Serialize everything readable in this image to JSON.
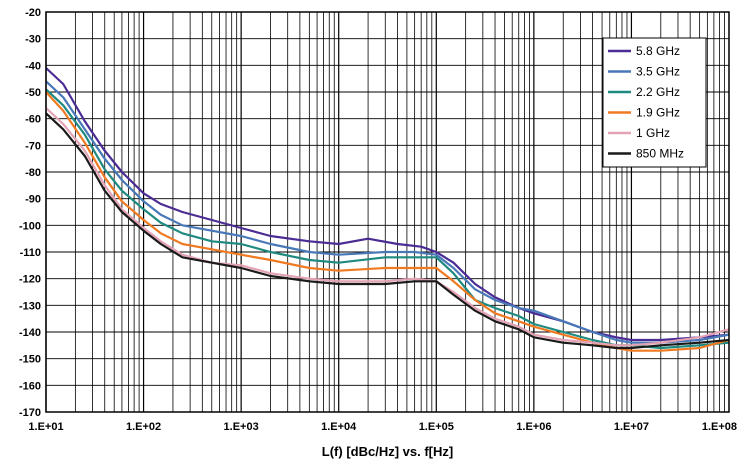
{
  "chart_data": {
    "type": "line",
    "title": "",
    "xlabel": "L(f)  [dBc/Hz] vs. f[Hz]",
    "ylabel": "",
    "x_scale": "log",
    "xlim": [
      10,
      100000000
    ],
    "ylim": [
      -170,
      -20
    ],
    "grid": true,
    "legend_position": "top-right",
    "x_tick_labels": [
      "1.E+01",
      "1.E+02",
      "1.E+03",
      "1.E+04",
      "1.E+05",
      "1.E+06",
      "1.E+07",
      "1.E+08"
    ],
    "y_tick_labels": [
      "-20",
      "-30",
      "-40",
      "-50",
      "-60",
      "-70",
      "-80",
      "-90",
      "-100",
      "-110",
      "-120",
      "-130",
      "-140",
      "-150",
      "-160",
      "-170"
    ],
    "series": [
      {
        "name": "5.8 GHz",
        "color": "#4b2c95",
        "points": [
          [
            10,
            -41
          ],
          [
            15,
            -47
          ],
          [
            25,
            -61
          ],
          [
            40,
            -72
          ],
          [
            60,
            -80
          ],
          [
            100,
            -88
          ],
          [
            150,
            -92
          ],
          [
            250,
            -95
          ],
          [
            500,
            -98
          ],
          [
            1000,
            -101
          ],
          [
            2000,
            -104
          ],
          [
            5000,
            -106
          ],
          [
            10000,
            -107
          ],
          [
            20000,
            -105
          ],
          [
            40000,
            -107
          ],
          [
            70000,
            -108
          ],
          [
            100000,
            -110
          ],
          [
            150000,
            -114
          ],
          [
            250000,
            -122
          ],
          [
            400000,
            -127
          ],
          [
            700000,
            -131
          ],
          [
            1000000,
            -133
          ],
          [
            2000000,
            -136
          ],
          [
            4000000,
            -140
          ],
          [
            7000000,
            -142
          ],
          [
            10000000,
            -143
          ],
          [
            20000000,
            -143
          ],
          [
            50000000,
            -142
          ],
          [
            100000000,
            -141
          ]
        ]
      },
      {
        "name": "3.5 GHz",
        "color": "#4878b8",
        "points": [
          [
            10,
            -46
          ],
          [
            15,
            -52
          ],
          [
            25,
            -64
          ],
          [
            40,
            -75
          ],
          [
            60,
            -83
          ],
          [
            100,
            -91
          ],
          [
            150,
            -96
          ],
          [
            250,
            -100
          ],
          [
            500,
            -102
          ],
          [
            1000,
            -104
          ],
          [
            2000,
            -107
          ],
          [
            5000,
            -110
          ],
          [
            10000,
            -111
          ],
          [
            30000,
            -110
          ],
          [
            60000,
            -110
          ],
          [
            100000,
            -111
          ],
          [
            150000,
            -116
          ],
          [
            250000,
            -124
          ],
          [
            400000,
            -128
          ],
          [
            700000,
            -131
          ],
          [
            1000000,
            -132
          ],
          [
            2000000,
            -136
          ],
          [
            4000000,
            -140
          ],
          [
            7000000,
            -143
          ],
          [
            10000000,
            -144
          ],
          [
            20000000,
            -144
          ],
          [
            50000000,
            -143
          ],
          [
            100000000,
            -141
          ]
        ]
      },
      {
        "name": "2.2 GHz",
        "color": "#1f8a80",
        "points": [
          [
            10,
            -49
          ],
          [
            15,
            -55
          ],
          [
            25,
            -66
          ],
          [
            40,
            -79
          ],
          [
            60,
            -87
          ],
          [
            100,
            -94
          ],
          [
            150,
            -99
          ],
          [
            250,
            -103
          ],
          [
            500,
            -106
          ],
          [
            1000,
            -107
          ],
          [
            2000,
            -110
          ],
          [
            5000,
            -113
          ],
          [
            10000,
            -114
          ],
          [
            30000,
            -112
          ],
          [
            60000,
            -112
          ],
          [
            100000,
            -112
          ],
          [
            150000,
            -118
          ],
          [
            250000,
            -128
          ],
          [
            400000,
            -131
          ],
          [
            700000,
            -134
          ],
          [
            1000000,
            -137
          ],
          [
            2000000,
            -140
          ],
          [
            4000000,
            -143
          ],
          [
            7000000,
            -145
          ],
          [
            10000000,
            -145
          ],
          [
            20000000,
            -146
          ],
          [
            50000000,
            -145
          ],
          [
            100000000,
            -144
          ]
        ]
      },
      {
        "name": "1.9 GHz",
        "color": "#f07a22",
        "points": [
          [
            10,
            -50
          ],
          [
            15,
            -57
          ],
          [
            25,
            -69
          ],
          [
            40,
            -82
          ],
          [
            60,
            -91
          ],
          [
            100,
            -98
          ],
          [
            150,
            -103
          ],
          [
            250,
            -107
          ],
          [
            500,
            -109
          ],
          [
            1000,
            -111
          ],
          [
            2000,
            -113
          ],
          [
            5000,
            -116
          ],
          [
            10000,
            -117
          ],
          [
            30000,
            -116
          ],
          [
            60000,
            -116
          ],
          [
            100000,
            -116
          ],
          [
            150000,
            -121
          ],
          [
            250000,
            -128
          ],
          [
            400000,
            -133
          ],
          [
            700000,
            -136
          ],
          [
            1000000,
            -138
          ],
          [
            2000000,
            -141
          ],
          [
            4000000,
            -144
          ],
          [
            7000000,
            -146
          ],
          [
            10000000,
            -147
          ],
          [
            20000000,
            -147
          ],
          [
            50000000,
            -146
          ],
          [
            100000000,
            -143
          ]
        ]
      },
      {
        "name": "1 GHz",
        "color": "#e4a3b4",
        "points": [
          [
            10,
            -56
          ],
          [
            15,
            -62
          ],
          [
            25,
            -72
          ],
          [
            40,
            -85
          ],
          [
            60,
            -94
          ],
          [
            100,
            -101
          ],
          [
            150,
            -106
          ],
          [
            250,
            -111
          ],
          [
            500,
            -114
          ],
          [
            1000,
            -115
          ],
          [
            2000,
            -118
          ],
          [
            5000,
            -120
          ],
          [
            10000,
            -121
          ],
          [
            30000,
            -121
          ],
          [
            60000,
            -120
          ],
          [
            100000,
            -121
          ],
          [
            150000,
            -125
          ],
          [
            250000,
            -131
          ],
          [
            400000,
            -135
          ],
          [
            700000,
            -138
          ],
          [
            1000000,
            -141
          ],
          [
            2000000,
            -143
          ],
          [
            4000000,
            -144
          ],
          [
            7000000,
            -145
          ],
          [
            10000000,
            -145
          ],
          [
            20000000,
            -144
          ],
          [
            50000000,
            -142
          ],
          [
            100000000,
            -139
          ]
        ]
      },
      {
        "name": "850 MHz",
        "color": "#1a1a1a",
        "points": [
          [
            10,
            -58
          ],
          [
            15,
            -64
          ],
          [
            25,
            -74
          ],
          [
            40,
            -87
          ],
          [
            60,
            -95
          ],
          [
            100,
            -102
          ],
          [
            150,
            -107
          ],
          [
            250,
            -112
          ],
          [
            500,
            -114
          ],
          [
            1000,
            -116
          ],
          [
            2000,
            -119
          ],
          [
            5000,
            -121
          ],
          [
            10000,
            -122
          ],
          [
            30000,
            -122
          ],
          [
            60000,
            -121
          ],
          [
            100000,
            -121
          ],
          [
            150000,
            -126
          ],
          [
            250000,
            -132
          ],
          [
            400000,
            -136
          ],
          [
            700000,
            -139
          ],
          [
            1000000,
            -142
          ],
          [
            2000000,
            -144
          ],
          [
            4000000,
            -145
          ],
          [
            7000000,
            -146
          ],
          [
            10000000,
            -146
          ],
          [
            20000000,
            -145
          ],
          [
            50000000,
            -144
          ],
          [
            100000000,
            -143
          ]
        ]
      }
    ]
  }
}
